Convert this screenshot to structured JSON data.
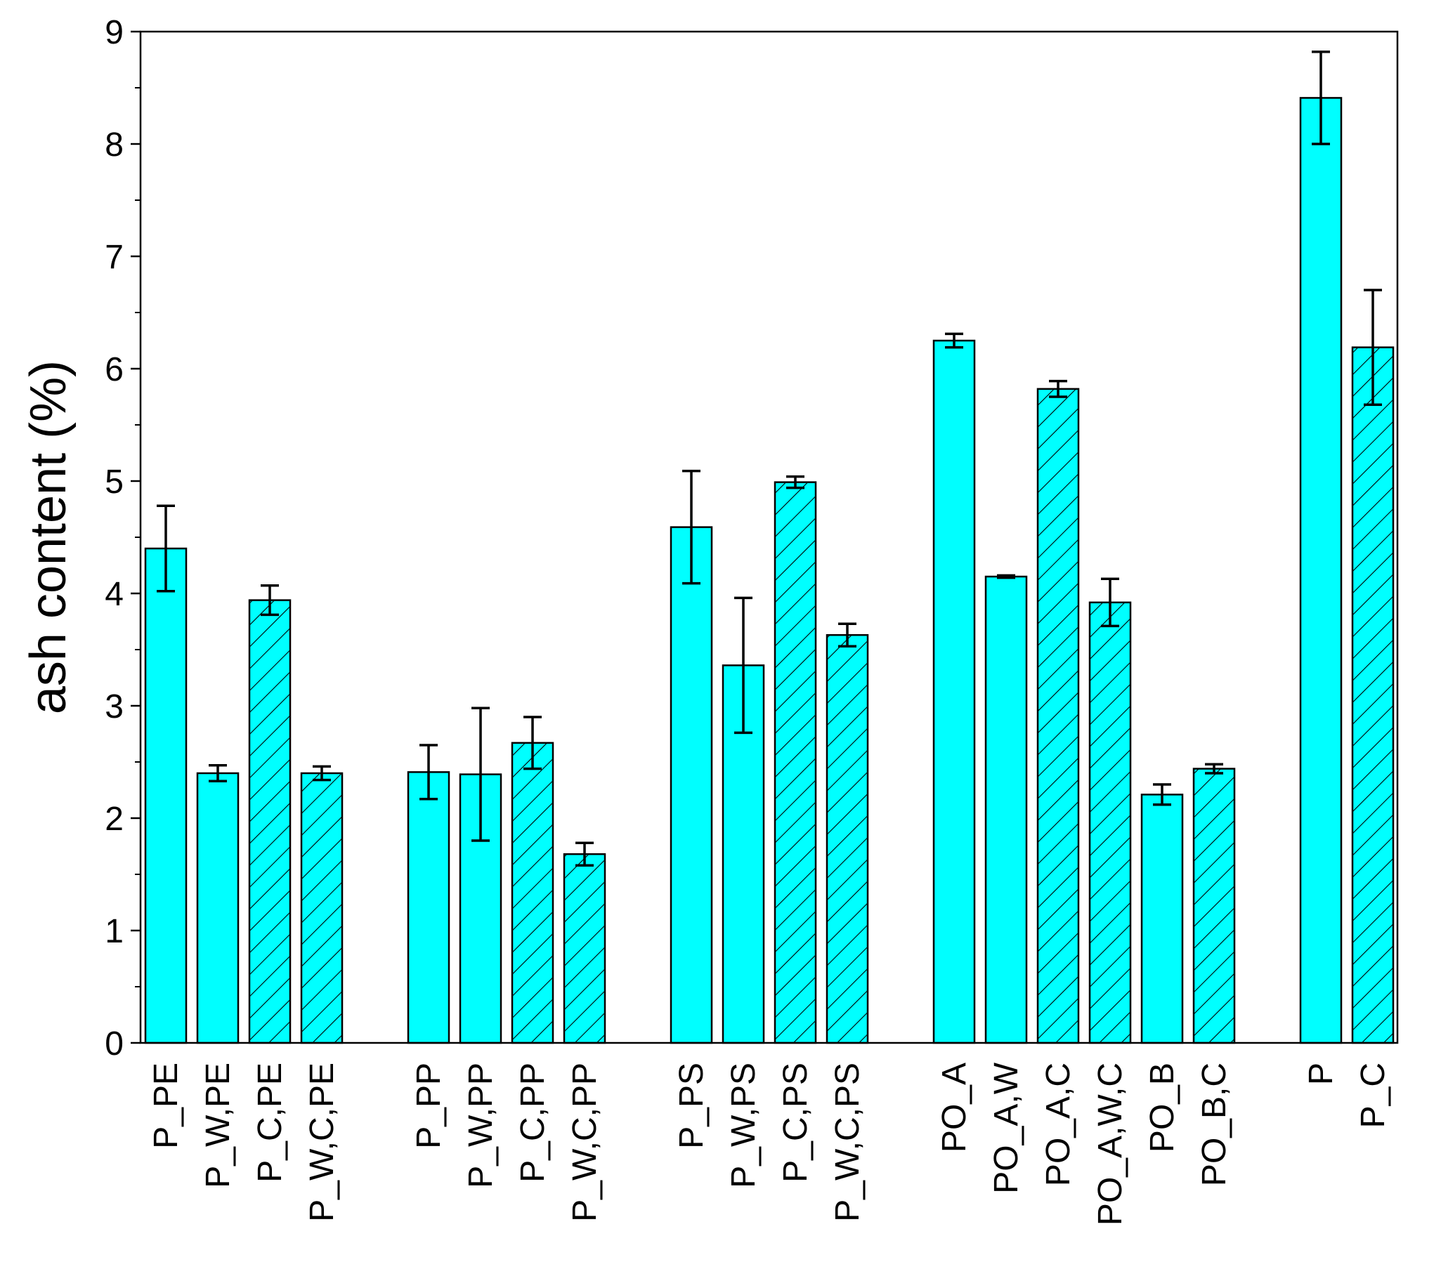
{
  "colors": {
    "bar_fill": "#00ffff",
    "bar_stroke": "#000000",
    "hatch": "#000000",
    "axis": "#000000"
  },
  "chart_data": {
    "type": "bar",
    "title": "",
    "xlabel": "",
    "ylabel": "ash content (%)",
    "ylim": [
      0,
      9
    ],
    "yticks": [
      0,
      1,
      2,
      3,
      4,
      5,
      6,
      7,
      8,
      9
    ],
    "grid": false,
    "legend": "none",
    "groups": [
      {
        "bars": [
          {
            "label": "P_PE",
            "value": 4.4,
            "error": 0.38,
            "hatched": false
          },
          {
            "label": "P_W,PE",
            "value": 2.4,
            "error": 0.07,
            "hatched": false
          },
          {
            "label": "P_C,PE",
            "value": 3.94,
            "error": 0.13,
            "hatched": true
          },
          {
            "label": "P_W,C,PE",
            "value": 2.4,
            "error": 0.06,
            "hatched": true
          }
        ]
      },
      {
        "bars": [
          {
            "label": "P_PP",
            "value": 2.41,
            "error": 0.24,
            "hatched": false
          },
          {
            "label": "P_W,PP",
            "value": 2.39,
            "error": 0.59,
            "hatched": false
          },
          {
            "label": "P_C,PP",
            "value": 2.67,
            "error": 0.23,
            "hatched": true
          },
          {
            "label": "P_W,C,PP",
            "value": 1.68,
            "error": 0.1,
            "hatched": true
          }
        ]
      },
      {
        "bars": [
          {
            "label": "P_PS",
            "value": 4.59,
            "error": 0.5,
            "hatched": false
          },
          {
            "label": "P_W,PS",
            "value": 3.36,
            "error": 0.6,
            "hatched": false
          },
          {
            "label": "P_C,PS",
            "value": 4.99,
            "error": 0.05,
            "hatched": true
          },
          {
            "label": "P_W,C,PS",
            "value": 3.63,
            "error": 0.1,
            "hatched": true
          }
        ]
      },
      {
        "bars": [
          {
            "label": "PO_A",
            "value": 6.25,
            "error": 0.06,
            "hatched": false
          },
          {
            "label": "PO_A,W",
            "value": 4.15,
            "error": 0.01,
            "hatched": false
          },
          {
            "label": "PO_A,C",
            "value": 5.82,
            "error": 0.07,
            "hatched": true
          },
          {
            "label": "PO_A,W,C",
            "value": 3.92,
            "error": 0.21,
            "hatched": true
          },
          {
            "label": "PO_B",
            "value": 2.21,
            "error": 0.09,
            "hatched": false
          },
          {
            "label": "PO_B,C",
            "value": 2.44,
            "error": 0.04,
            "hatched": true
          }
        ]
      },
      {
        "bars": [
          {
            "label": "P",
            "value": 8.41,
            "error": 0.41,
            "hatched": false
          },
          {
            "label": "P_C",
            "value": 6.19,
            "error": 0.51,
            "hatched": true
          }
        ]
      }
    ]
  }
}
